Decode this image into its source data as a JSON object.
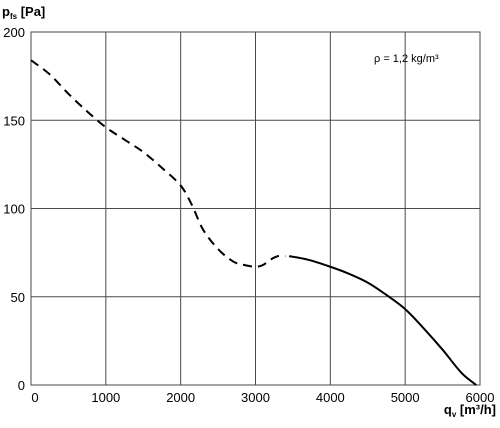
{
  "chart_data": {
    "type": "line",
    "title": "",
    "xlabel": {
      "main": "q",
      "sub": "v",
      "unit": " [m³/h]"
    },
    "ylabel": {
      "main": "p",
      "sub": "fs",
      "unit": " [Pa]"
    },
    "xlim": [
      0,
      6000
    ],
    "ylim": [
      0,
      200
    ],
    "x_ticks": [
      0,
      1000,
      2000,
      3000,
      4000,
      5000,
      6000
    ],
    "y_ticks": [
      0,
      50,
      100,
      150,
      200
    ],
    "grid": true,
    "annotation": "ρ = 1,2 kg/m³",
    "series": [
      {
        "style": "dashed",
        "x": [
          0,
          250,
          500,
          750,
          1000,
          1250,
          1500,
          1750,
          2000,
          2150,
          2300,
          2500,
          2700,
          2850,
          3000,
          3100,
          3200,
          3300,
          3400
        ],
        "values": [
          184,
          176,
          165,
          155,
          146,
          139,
          132,
          123,
          113,
          102,
          88,
          77,
          70,
          68,
          67,
          68,
          71,
          73,
          73
        ]
      },
      {
        "style": "solid",
        "x": [
          3450,
          3700,
          4000,
          4250,
          4500,
          4750,
          5000,
          5250,
          5500,
          5750,
          5950
        ],
        "values": [
          73,
          71,
          67,
          63,
          58,
          51,
          43,
          32,
          20,
          7,
          0
        ]
      }
    ]
  }
}
